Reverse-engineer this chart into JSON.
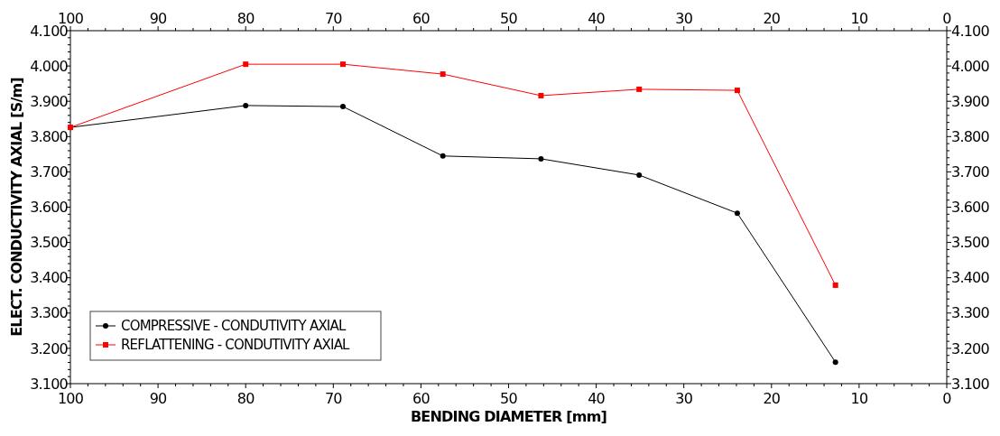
{
  "chart_data": {
    "type": "line",
    "xlabel": "BENDING DIAMETER [mm]",
    "ylabel": "ELECT. CONDUCTIVITY AXIAL [S/m]",
    "x": [
      100,
      80,
      68.9,
      57.5,
      46.3,
      35.1,
      23.9,
      12.7
    ],
    "series": [
      {
        "name": "COMPRESSIVE - CONDUTIVITY AXIAL",
        "color": "#000000",
        "marker": "circle",
        "values": [
          3826,
          3888,
          3885,
          3745,
          3737,
          3691,
          3583,
          3161
        ]
      },
      {
        "name": "REFLATTENING - CONDUTIVITY AXIAL",
        "color": "#ff0000",
        "marker": "square",
        "values": [
          3826,
          4005,
          4005,
          3977,
          3916,
          3934,
          3931,
          3379
        ]
      }
    ],
    "xlim": [
      100,
      0
    ],
    "xticks": [
      100,
      {
        "value": 98,
        "label": null
      },
      {
        "value": 96,
        "label": null
      },
      {
        "value": 94,
        "label": null
      },
      {
        "value": 92,
        "label": null
      },
      90,
      {
        "value": 88,
        "label": null
      },
      {
        "value": 86,
        "label": null
      },
      {
        "value": 84,
        "label": null
      },
      {
        "value": 82,
        "label": null
      },
      80,
      {
        "value": 78,
        "label": null
      },
      {
        "value": 76,
        "label": null
      },
      {
        "value": 74,
        "label": null
      },
      {
        "value": 72,
        "label": null
      },
      70,
      {
        "value": 68,
        "label": null
      },
      {
        "value": 66,
        "label": null
      },
      {
        "value": 64,
        "label": null
      },
      {
        "value": 62,
        "label": null
      },
      60,
      {
        "value": 58,
        "label": null
      },
      {
        "value": 56,
        "label": null
      },
      {
        "value": 54,
        "label": null
      },
      {
        "value": 52,
        "label": null
      },
      50,
      {
        "value": 48,
        "label": null
      },
      {
        "value": 46,
        "label": null
      },
      {
        "value": 44,
        "label": null
      },
      {
        "value": 42,
        "label": null
      },
      40,
      {
        "value": 38,
        "label": null
      },
      {
        "value": 36,
        "label": null
      },
      {
        "value": 34,
        "label": null
      },
      {
        "value": 32,
        "label": null
      },
      30,
      {
        "value": 28,
        "label": null
      },
      {
        "value": 26,
        "label": null
      },
      {
        "value": 24,
        "label": null
      },
      {
        "value": 22,
        "label": null
      },
      20,
      {
        "value": 18,
        "label": null
      },
      {
        "value": 16,
        "label": null
      },
      {
        "value": 14,
        "label": null
      },
      {
        "value": 12,
        "label": null
      },
      10,
      {
        "value": 8,
        "label": null
      },
      {
        "value": 6,
        "label": null
      },
      {
        "value": 4,
        "label": null
      },
      {
        "value": 2,
        "label": null
      },
      0
    ],
    "x2lim": [
      100,
      0
    ],
    "x2ticks": [
      100,
      90,
      80,
      70,
      60,
      50,
      40,
      30,
      20,
      10,
      0
    ],
    "ylim": [
      3100,
      4100
    ],
    "yticks": [
      {
        "value": 3100,
        "label": "3.100"
      },
      {
        "value": 3120,
        "label": null
      },
      {
        "value": 3140,
        "label": null
      },
      {
        "value": 3160,
        "label": null
      },
      {
        "value": 3180,
        "label": null
      },
      {
        "value": 3200,
        "label": "3.200"
      },
      {
        "value": 3220,
        "label": null
      },
      {
        "value": 3240,
        "label": null
      },
      {
        "value": 3260,
        "label": null
      },
      {
        "value": 3280,
        "label": null
      },
      {
        "value": 3300,
        "label": "3.300"
      },
      {
        "value": 3320,
        "label": null
      },
      {
        "value": 3340,
        "label": null
      },
      {
        "value": 3360,
        "label": null
      },
      {
        "value": 3380,
        "label": null
      },
      {
        "value": 3400,
        "label": "3.400"
      },
      {
        "value": 3420,
        "label": null
      },
      {
        "value": 3440,
        "label": null
      },
      {
        "value": 3460,
        "label": null
      },
      {
        "value": 3480,
        "label": null
      },
      {
        "value": 3500,
        "label": "3.500"
      },
      {
        "value": 3520,
        "label": null
      },
      {
        "value": 3540,
        "label": null
      },
      {
        "value": 3560,
        "label": null
      },
      {
        "value": 3580,
        "label": null
      },
      {
        "value": 3600,
        "label": "3.600"
      },
      {
        "value": 3620,
        "label": null
      },
      {
        "value": 3640,
        "label": null
      },
      {
        "value": 3660,
        "label": null
      },
      {
        "value": 3680,
        "label": null
      },
      {
        "value": 3700,
        "label": "3.700"
      },
      {
        "value": 3720,
        "label": null
      },
      {
        "value": 3740,
        "label": null
      },
      {
        "value": 3760,
        "label": null
      },
      {
        "value": 3780,
        "label": null
      },
      {
        "value": 3800,
        "label": "3.800"
      },
      {
        "value": 3820,
        "label": null
      },
      {
        "value": 3840,
        "label": null
      },
      {
        "value": 3860,
        "label": null
      },
      {
        "value": 3880,
        "label": null
      },
      {
        "value": 3900,
        "label": "3.900"
      },
      {
        "value": 3920,
        "label": null
      },
      {
        "value": 3940,
        "label": null
      },
      {
        "value": 3960,
        "label": null
      },
      {
        "value": 3980,
        "label": null
      },
      {
        "value": 4000,
        "label": "4.000"
      },
      {
        "value": 4020,
        "label": null
      },
      {
        "value": 4040,
        "label": null
      },
      {
        "value": 4060,
        "label": null
      },
      {
        "value": 4080,
        "label": null
      },
      {
        "value": 4100,
        "label": "4.100"
      }
    ],
    "y2lim": [
      3100,
      4100
    ],
    "y2ticks": [
      {
        "value": 3100,
        "label": "3.100"
      },
      {
        "value": 3200,
        "label": "3.200"
      },
      {
        "value": 3300,
        "label": "3.300"
      },
      {
        "value": 3400,
        "label": "3.400"
      },
      {
        "value": 3500,
        "label": "3.500"
      },
      {
        "value": 3600,
        "label": "3.600"
      },
      {
        "value": 3700,
        "label": "3.700"
      },
      {
        "value": 3800,
        "label": "3.800"
      },
      {
        "value": 3900,
        "label": "3.900"
      },
      {
        "value": 4000,
        "label": "4.000"
      },
      {
        "value": 4100,
        "label": "4.100"
      }
    ],
    "legend": "bottom left",
    "grid": false,
    "line_style": "solid"
  }
}
